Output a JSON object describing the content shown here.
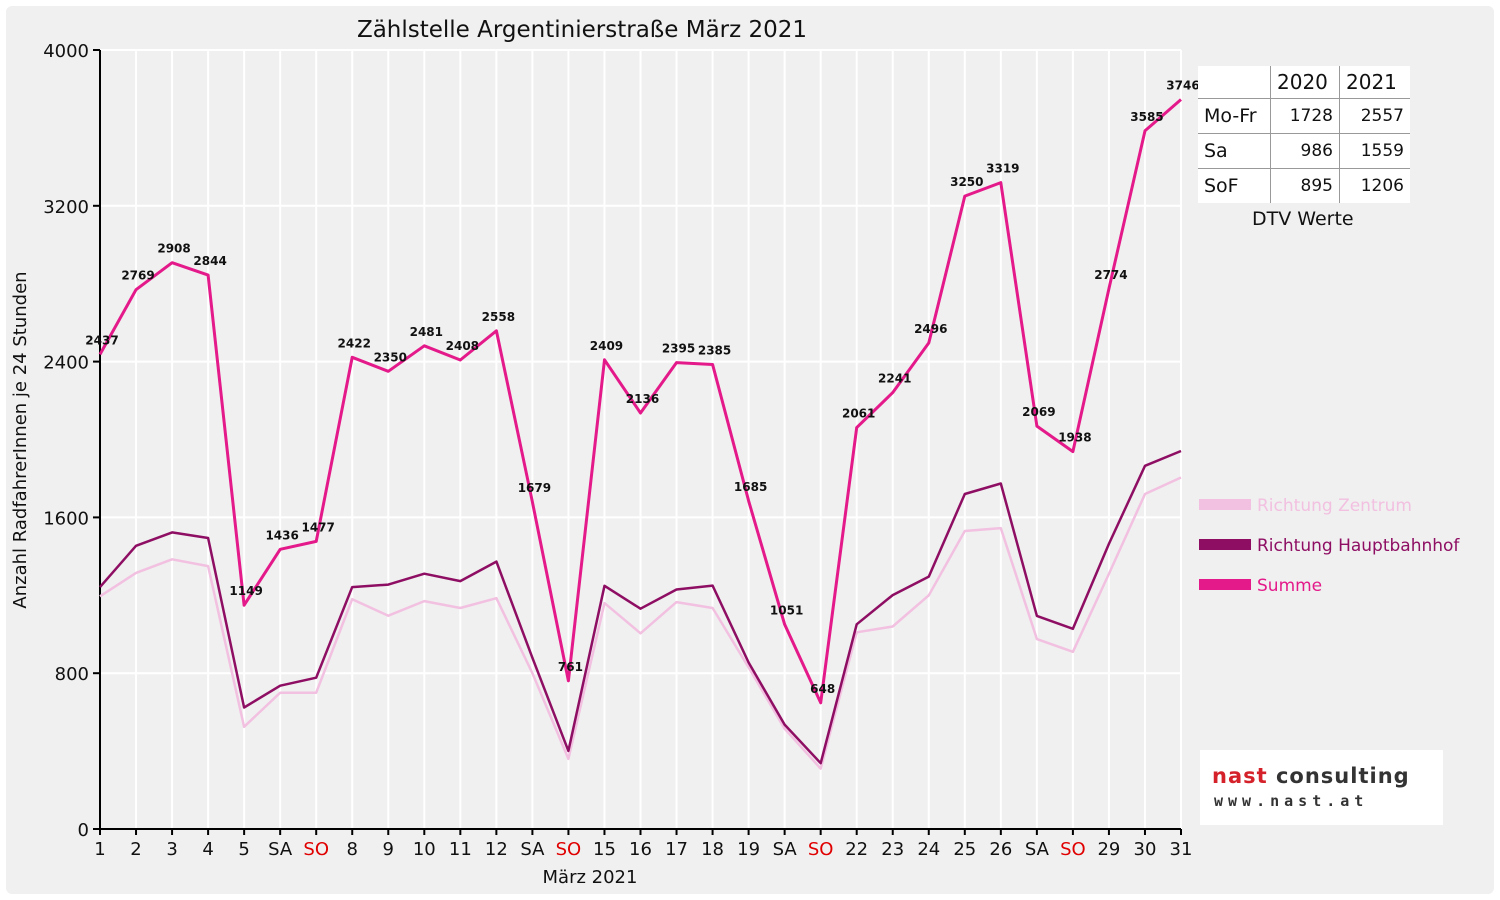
{
  "chart_data": {
    "type": "line",
    "title": "Zählstelle Argentinierstraße März 2021",
    "xlabel": "März 2021",
    "ylabel": "Anzahl RadfahrerInnen je 24 Stunden",
    "ylim": [
      0,
      4000
    ],
    "yticks": [
      0,
      800,
      1600,
      2400,
      3200,
      4000
    ],
    "grid": true,
    "legend_position": "right",
    "categories": [
      "1",
      "2",
      "3",
      "4",
      "5",
      "SA",
      "SO",
      "8",
      "9",
      "10",
      "11",
      "12",
      "SA",
      "SO",
      "15",
      "16",
      "17",
      "18",
      "19",
      "SA",
      "SO",
      "22",
      "23",
      "24",
      "25",
      "26",
      "SA",
      "SO",
      "29",
      "30",
      "31"
    ],
    "weekend_highlight": [
      "SO"
    ],
    "series": [
      {
        "name": "Richtung Zentrum",
        "color": "#f2c0e0",
        "values": [
          1195,
          1315,
          1385,
          1350,
          525,
          700,
          700,
          1180,
          1095,
          1170,
          1135,
          1185,
          800,
          360,
          1160,
          1005,
          1165,
          1135,
          830,
          515,
          310,
          1010,
          1040,
          1200,
          1530,
          1545,
          975,
          910,
          1310,
          1720,
          1805
        ]
      },
      {
        "name": "Richtung Hauptbahnhof",
        "color": "#8e0e63",
        "values": [
          1242,
          1454,
          1523,
          1494,
          624,
          736,
          777,
          1242,
          1255,
          1311,
          1273,
          1373,
          879,
          401,
          1249,
          1131,
          1230,
          1250,
          855,
          536,
          338,
          1051,
          1201,
          1296,
          1720,
          1774,
          1094,
          1028,
          1464,
          1865,
          1941
        ]
      },
      {
        "name": "Summe",
        "color": "#e4198a",
        "values": [
          2437,
          2769,
          2908,
          2844,
          1149,
          1436,
          1477,
          2422,
          2350,
          2481,
          2408,
          2558,
          1679,
          761,
          2409,
          2136,
          2395,
          2385,
          1685,
          1051,
          648,
          2061,
          2241,
          2496,
          3250,
          3319,
          2069,
          1938,
          2774,
          3585,
          3746
        ],
        "data_labels": true
      }
    ]
  },
  "dtv_table": {
    "caption": "DTV Werte",
    "headers": [
      "",
      "2020",
      "2021"
    ],
    "rows": [
      {
        "label": "Mo-Fr",
        "v2020": "1728",
        "v2021": "2557"
      },
      {
        "label": "Sa",
        "v2020": "986",
        "v2021": "1559"
      },
      {
        "label": "SoF",
        "v2020": "895",
        "v2021": "1206"
      }
    ]
  },
  "logo": {
    "name_part1": "nast ",
    "name_part2": "consulting",
    "url": "www.nast.at"
  },
  "colors": {
    "sunday": "#e00000",
    "axis": "#000000",
    "grid": "#ffffff",
    "plot_bg": "#f0f0f0"
  }
}
